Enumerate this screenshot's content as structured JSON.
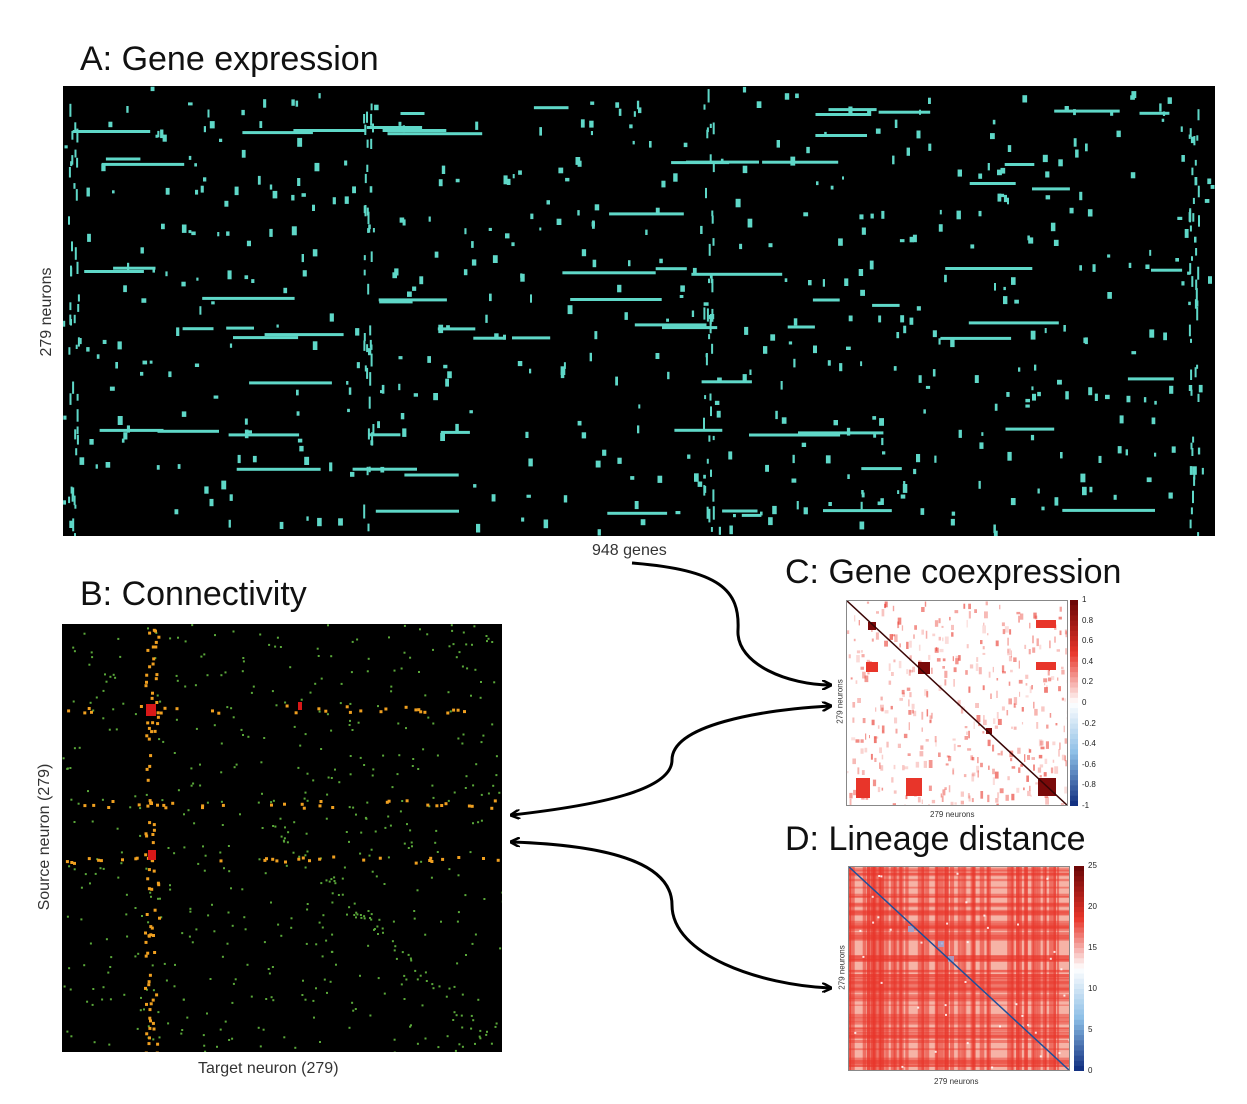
{
  "panels": {
    "a": {
      "title": "A: Gene expression",
      "ylabel": "279 neurons",
      "xlabel": "948 genes"
    },
    "b": {
      "title": "B: Connectivity",
      "ylabel": "Source neuron (279)",
      "xlabel": "Target neuron (279)"
    },
    "c": {
      "title": "C: Gene coexpression",
      "ylabel": "279 neurons",
      "xlabel": "279 neurons",
      "colorbar_ticks": [
        "1",
        "0.8",
        "0.6",
        "0.4",
        "0.2",
        "0",
        "-0.2",
        "-0.4",
        "-0.6",
        "-0.8",
        "-1"
      ]
    },
    "d": {
      "title": "D: Lineage distance",
      "ylabel": "279 neurons",
      "xlabel": "279 neurons",
      "colorbar_ticks": [
        "25",
        "20",
        "15",
        "10",
        "5",
        "0"
      ]
    }
  },
  "colors": {
    "expression": "#5fd8c8",
    "connectivity_green": "#5aa83a",
    "connectivity_orange": "#f0a020",
    "connectivity_red": "#d81818",
    "heat_red": "#e8352a",
    "heat_dark": "#7a0a0a",
    "heat_blue": "#1f4f9a",
    "background": "#000000"
  }
}
